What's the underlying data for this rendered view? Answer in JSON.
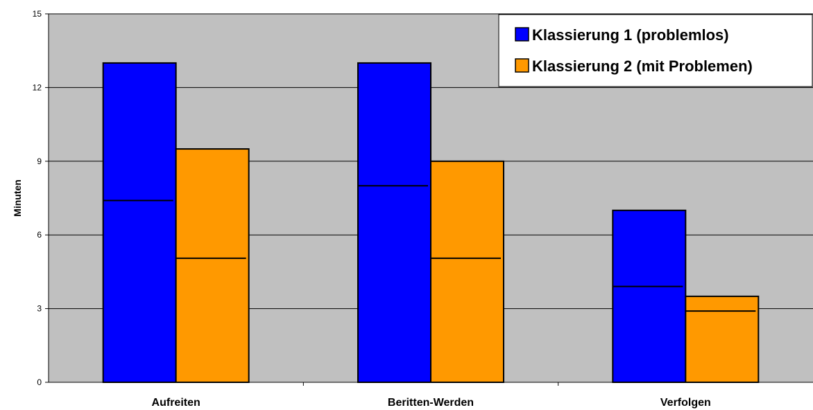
{
  "chart_data": {
    "type": "bar",
    "categories": [
      "Aufreiten",
      "Beritten-Werden",
      "Verfolgen"
    ],
    "series": [
      {
        "name": "Klassierung 1 (problemlos)",
        "color": "#0000ff",
        "values": [
          13,
          13,
          7
        ],
        "median": [
          7.4,
          8.0,
          3.9
        ]
      },
      {
        "name": "Klassierung 2 (mit Problemen)",
        "color": "#ff9900",
        "values": [
          9.5,
          9,
          3.5
        ],
        "median": [
          5.05,
          5.05,
          2.9
        ]
      }
    ],
    "ylabel": "Minuten",
    "xlabel": "",
    "ylim": [
      0,
      15
    ],
    "yticks": [
      0,
      3,
      6,
      9,
      12,
      15
    ],
    "grid": true,
    "plot_background": "#c0c0c0",
    "legend_position": "top-right"
  }
}
